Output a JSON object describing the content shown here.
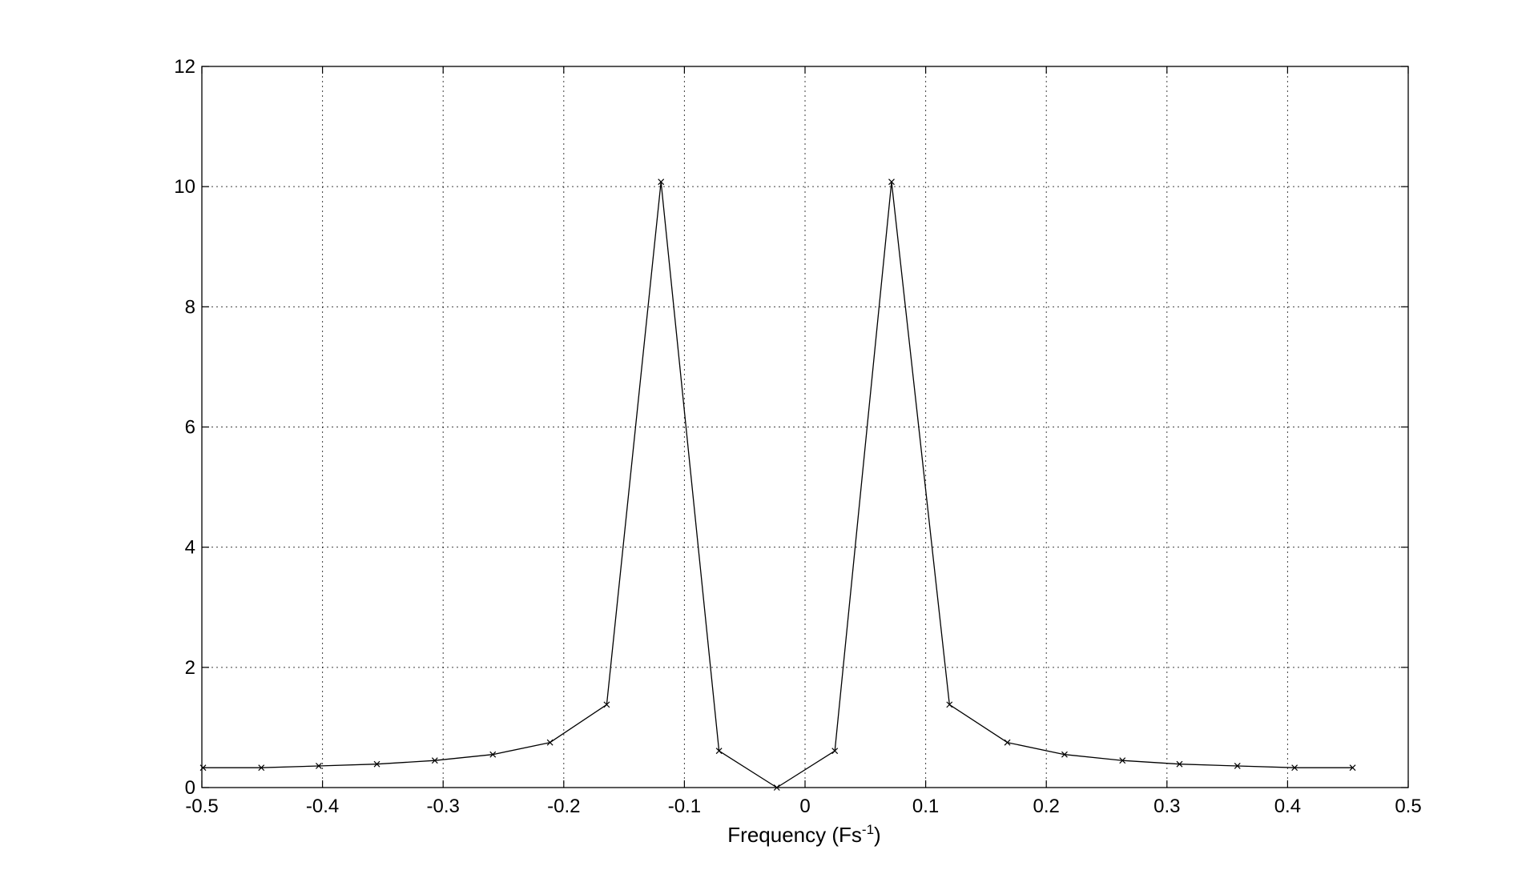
{
  "chart_data": {
    "type": "line",
    "title": "",
    "xlabel": {
      "main": "Frequency (Fs",
      "superscript": "-1",
      "close": ")"
    },
    "ylabel": "",
    "xlim": [
      -0.5,
      0.5
    ],
    "ylim": [
      0,
      12
    ],
    "x_ticks": [
      "-0.5",
      "-0.4",
      "-0.3",
      "-0.2",
      "-0.1",
      "0",
      "0.1",
      "0.2",
      "0.3",
      "0.4",
      "0.5"
    ],
    "x_tick_values": [
      -0.5,
      -0.4,
      -0.3,
      -0.2,
      -0.1,
      0,
      0.1,
      0.2,
      0.3,
      0.4,
      0.5
    ],
    "y_ticks": [
      "0",
      "2",
      "4",
      "6",
      "8",
      "10",
      "12"
    ],
    "y_tick_values": [
      0,
      2,
      4,
      6,
      8,
      10,
      12
    ],
    "grid": true,
    "grid_style": "dotted",
    "marker": "x",
    "line_color": "#000000",
    "series": [
      {
        "x": [
          -0.499,
          -0.4507,
          -0.4031,
          -0.3549,
          -0.3069,
          -0.2588,
          -0.2114,
          -0.1644,
          -0.1194,
          -0.0713,
          -0.0234,
          0.0247,
          0.0717,
          0.1197,
          0.1677,
          0.2151,
          0.2631,
          0.3104,
          0.3584,
          0.4058,
          0.4539
        ],
        "y": [
          0.33,
          0.33,
          0.36,
          0.39,
          0.45,
          0.55,
          0.75,
          1.38,
          10.08,
          0.61,
          0.0,
          0.61,
          10.08,
          1.38,
          0.75,
          0.55,
          0.45,
          0.39,
          0.36,
          0.33,
          0.33
        ]
      }
    ]
  }
}
